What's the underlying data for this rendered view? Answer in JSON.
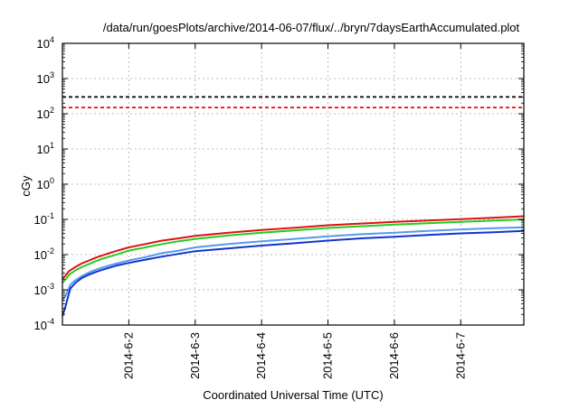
{
  "chart_data": {
    "type": "line",
    "title": "/data/run/goesPlots/archive/2014-06-07/flux/../bryn/7daysEarthAccumulated.plot",
    "xlabel": "Coordinated Universal Time (UTC)",
    "ylabel": "cGy",
    "y_scale": "log",
    "ylim": [
      0.0001,
      10000
    ],
    "xlim": [
      1.0,
      7.95
    ],
    "grid": true,
    "y_ticks": [
      {
        "base": "10",
        "exp": "-4",
        "value": 0.0001
      },
      {
        "base": "10",
        "exp": "-3",
        "value": 0.001
      },
      {
        "base": "10",
        "exp": "-2",
        "value": 0.01
      },
      {
        "base": "10",
        "exp": "-1",
        "value": 0.1
      },
      {
        "base": "10",
        "exp": "0",
        "value": 1
      },
      {
        "base": "10",
        "exp": "1",
        "value": 10
      },
      {
        "base": "10",
        "exp": "2",
        "value": 100
      },
      {
        "base": "10",
        "exp": "3",
        "value": 1000
      },
      {
        "base": "10",
        "exp": "4",
        "value": 10000
      }
    ],
    "x_ticks": [
      {
        "label": "2014-6-2",
        "value": 2
      },
      {
        "label": "2014-6-3",
        "value": 3
      },
      {
        "label": "2014-6-4",
        "value": 4
      },
      {
        "label": "2014-6-5",
        "value": 5
      },
      {
        "label": "2014-6-6",
        "value": 6
      },
      {
        "label": "2014-6-7",
        "value": 7
      }
    ],
    "thresholds": [
      {
        "value": 300,
        "color": "#000000"
      },
      {
        "value": 150,
        "color": "#ff0000"
      }
    ],
    "series": [
      {
        "color": "#dd1111",
        "x": [
          1.0,
          1.05,
          1.1,
          1.2,
          1.3,
          1.4,
          1.5,
          1.6,
          1.8,
          2.0,
          2.25,
          2.5,
          2.75,
          3.0,
          3.5,
          4.0,
          4.5,
          5.0,
          5.5,
          6.0,
          6.5,
          7.0,
          7.5,
          7.95
        ],
        "y": [
          0.002,
          0.0026,
          0.0034,
          0.0045,
          0.0057,
          0.0068,
          0.0082,
          0.0095,
          0.0125,
          0.016,
          0.02,
          0.025,
          0.029,
          0.034,
          0.042,
          0.05,
          0.058,
          0.068,
          0.076,
          0.085,
          0.093,
          0.102,
          0.112,
          0.123
        ]
      },
      {
        "color": "#22cc22",
        "x": [
          1.0,
          1.05,
          1.1,
          1.2,
          1.3,
          1.4,
          1.5,
          1.6,
          1.8,
          2.0,
          2.25,
          2.5,
          2.75,
          3.0,
          3.5,
          4.0,
          4.5,
          5.0,
          5.5,
          6.0,
          6.5,
          7.0,
          7.5,
          7.95
        ],
        "y": [
          0.0016,
          0.002,
          0.0027,
          0.0036,
          0.0045,
          0.0054,
          0.0065,
          0.0076,
          0.0098,
          0.013,
          0.016,
          0.02,
          0.024,
          0.028,
          0.035,
          0.042,
          0.049,
          0.057,
          0.064,
          0.071,
          0.078,
          0.085,
          0.093,
          0.1
        ]
      },
      {
        "color": "#5599ee",
        "x": [
          1.0,
          1.05,
          1.12,
          1.2,
          1.3,
          1.4,
          1.5,
          1.6,
          1.8,
          2.0,
          2.25,
          2.5,
          2.75,
          3.0,
          3.5,
          4.0,
          4.5,
          5.0,
          5.5,
          6.0,
          6.5,
          7.0,
          7.5,
          7.95
        ],
        "y": [
          0.0005,
          0.0007,
          0.0014,
          0.0019,
          0.0025,
          0.0031,
          0.0037,
          0.0043,
          0.0055,
          0.0068,
          0.0085,
          0.011,
          0.013,
          0.016,
          0.02,
          0.024,
          0.028,
          0.033,
          0.038,
          0.042,
          0.047,
          0.052,
          0.056,
          0.06
        ]
      },
      {
        "color": "#1133cc",
        "x": [
          1.0,
          1.04,
          1.08,
          1.12,
          1.2,
          1.3,
          1.4,
          1.5,
          1.6,
          1.8,
          2.0,
          2.25,
          2.5,
          2.75,
          3.0,
          3.5,
          4.0,
          4.5,
          5.0,
          5.5,
          6.0,
          6.5,
          7.0,
          7.5,
          7.95
        ],
        "y": [
          0.00018,
          0.0003,
          0.0006,
          0.0011,
          0.0016,
          0.0022,
          0.0027,
          0.0032,
          0.0037,
          0.0048,
          0.0058,
          0.0072,
          0.0088,
          0.0105,
          0.0125,
          0.015,
          0.018,
          0.021,
          0.025,
          0.029,
          0.032,
          0.036,
          0.04,
          0.043,
          0.047
        ]
      }
    ]
  }
}
